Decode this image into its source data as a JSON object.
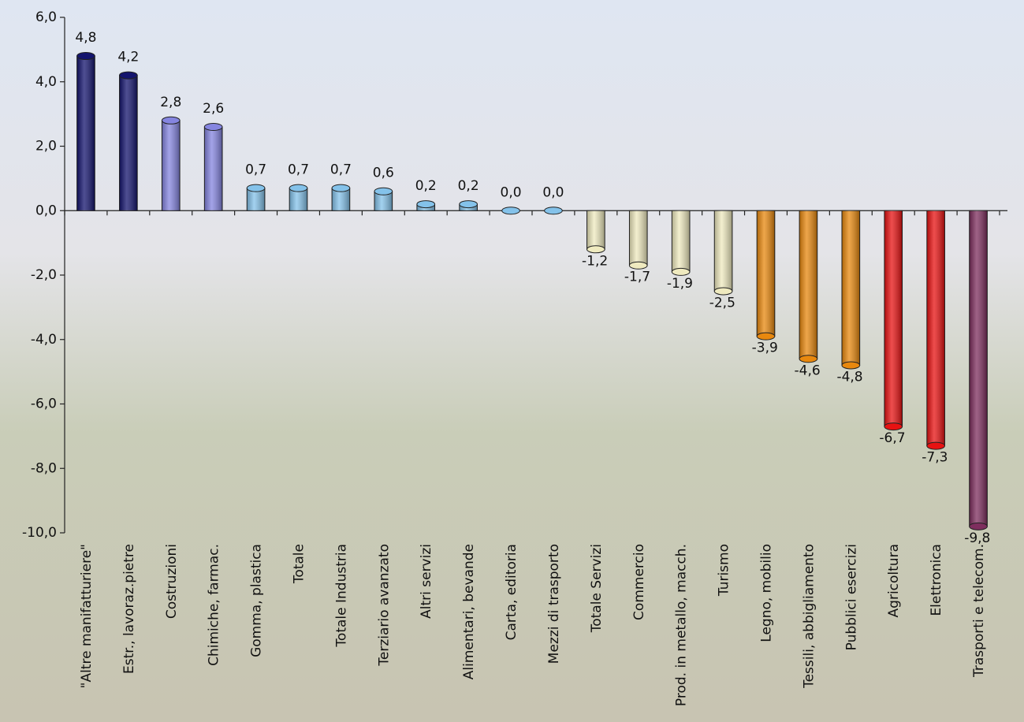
{
  "chart_data": {
    "type": "bar",
    "categories": [
      "\"Altre manifatturiere\"",
      "Estr., lavoraz.pietre",
      "Costruzioni",
      "Chimiche, farmac.",
      "Gomma, plastica",
      "Totale",
      "Totale Industria",
      "Terziario avanzato",
      "Altri servizi",
      "Alimentari, bevande",
      "Carta, editoria",
      "Mezzi di trasporto",
      "Totale Servizi",
      "Commercio",
      "Prod. in metallo, macch.",
      "Turismo",
      "Legno, mobilio",
      "Tessili, abbigliamento",
      "Pubblici esercizi",
      "Agricoltura",
      "Elettronica",
      "Trasporti e telecom."
    ],
    "values": [
      4.8,
      4.2,
      2.8,
      2.6,
      0.7,
      0.7,
      0.7,
      0.6,
      0.2,
      0.2,
      0.0,
      0.0,
      -1.2,
      -1.7,
      -1.9,
      -2.5,
      -3.9,
      -4.6,
      -4.8,
      -6.7,
      -7.3,
      -9.8
    ],
    "value_labels": [
      "4,8",
      "4,2",
      "2,8",
      "2,6",
      "0,7",
      "0,7",
      "0,7",
      "0,6",
      "0,2",
      "0,2",
      "0,0",
      "0,0",
      "-1,2",
      "-1,7",
      "-1,9",
      "-2,5",
      "-3,9",
      "-4,6",
      "-4,8",
      "-6,7",
      "-7,3",
      "-9,8"
    ],
    "colors": [
      "#14146e",
      "#14146e",
      "#8585e0",
      "#8585e0",
      "#84c2ea",
      "#84c2ea",
      "#84c2ea",
      "#84c2ea",
      "#84c2ea",
      "#84c2ea",
      "#84c2ea",
      "#84c2ea",
      "#efeabf",
      "#efeabf",
      "#efeabf",
      "#efeabf",
      "#e8880e",
      "#e8880e",
      "#e8880e",
      "#e81212",
      "#e81212",
      "#7e2e5e"
    ],
    "ylim": [
      -10,
      6
    ],
    "yticks": [
      {
        "value": -10,
        "label": "-10,0"
      },
      {
        "value": -8,
        "label": "-8,0"
      },
      {
        "value": -6,
        "label": "-6,0"
      },
      {
        "value": -4,
        "label": "-4,0"
      },
      {
        "value": -2,
        "label": "-2,0"
      },
      {
        "value": 0,
        "label": "0,0"
      },
      {
        "value": 2,
        "label": "2,0"
      },
      {
        "value": 4,
        "label": "4,0"
      },
      {
        "value": 6,
        "label": "6,0"
      }
    ]
  }
}
